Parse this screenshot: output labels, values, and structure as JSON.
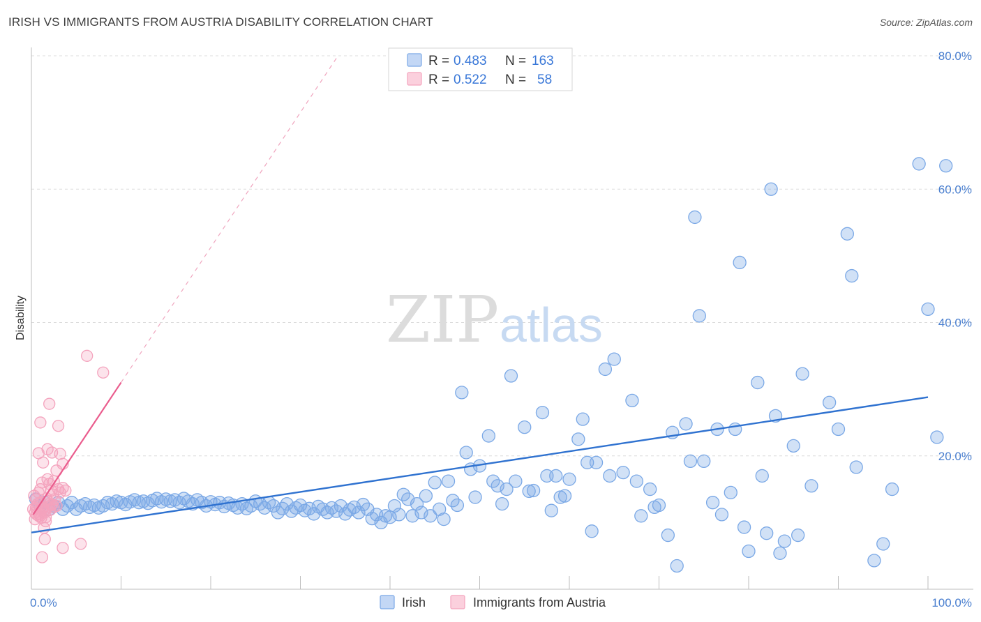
{
  "title": "IRISH VS IMMIGRANTS FROM AUSTRIA DISABILITY CORRELATION CHART",
  "source": "Source: ZipAtlas.com",
  "watermark": {
    "zip": "ZIP",
    "atlas": "atlas"
  },
  "chart_data": {
    "type": "scatter",
    "ylabel": "Disability",
    "xlim": [
      0,
      100
    ],
    "ylim": [
      0,
      80
    ],
    "x_tick_labels": [
      "0.0%",
      "100.0%"
    ],
    "y_ticks": [
      20,
      40,
      60,
      80
    ],
    "y_tick_labels": [
      "20.0%",
      "40.0%",
      "60.0%",
      "80.0%"
    ],
    "grid": true,
    "legend_placement": "top-center",
    "legend": {
      "rows": [
        {
          "r_label": "R =",
          "r_value": "0.483",
          "n_label": "N =",
          "n_value": "163"
        },
        {
          "r_label": "R =",
          "r_value": "0.522",
          "n_label": "N =",
          "n_value": "58"
        }
      ]
    },
    "series": [
      {
        "name": "Irish",
        "color": "#7aa8e6",
        "line_color": "#2f72d0",
        "trend": {
          "x": [
            0,
            100
          ],
          "y": [
            8.5,
            28.8
          ]
        },
        "points": [
          [
            0.5,
            13.5
          ],
          [
            1,
            12.5
          ],
          [
            1.5,
            13
          ],
          [
            2,
            12
          ],
          [
            2.5,
            12.5
          ],
          [
            3,
            13
          ],
          [
            3.5,
            12
          ],
          [
            4,
            12.5
          ],
          [
            4.5,
            13
          ],
          [
            5,
            12
          ],
          [
            5.5,
            12.5
          ],
          [
            6,
            12.8
          ],
          [
            6.5,
            12.3
          ],
          [
            7,
            12.6
          ],
          [
            7.5,
            12.2
          ],
          [
            8,
            12.5
          ],
          [
            8.5,
            13
          ],
          [
            9,
            12.8
          ],
          [
            9.5,
            13.2
          ],
          [
            10,
            13
          ],
          [
            10.5,
            12.7
          ],
          [
            11,
            13.1
          ],
          [
            11.5,
            13.4
          ],
          [
            12,
            13
          ],
          [
            12.5,
            13.2
          ],
          [
            13,
            12.9
          ],
          [
            13.5,
            13.3
          ],
          [
            14,
            13.6
          ],
          [
            14.5,
            13.1
          ],
          [
            15,
            13.5
          ],
          [
            15.5,
            13.2
          ],
          [
            16,
            13.4
          ],
          [
            16.5,
            13
          ],
          [
            17,
            13.6
          ],
          [
            17.5,
            13.2
          ],
          [
            18,
            12.8
          ],
          [
            18.5,
            13.4
          ],
          [
            19,
            13
          ],
          [
            19.5,
            12.5
          ],
          [
            20,
            13.1
          ],
          [
            20.5,
            12.7
          ],
          [
            21,
            13
          ],
          [
            21.5,
            12.4
          ],
          [
            22,
            12.9
          ],
          [
            22.5,
            12.6
          ],
          [
            23,
            12.2
          ],
          [
            23.5,
            12.8
          ],
          [
            24,
            12.1
          ],
          [
            24.5,
            12.5
          ],
          [
            25,
            13.2
          ],
          [
            25.5,
            12.8
          ],
          [
            26,
            12.2
          ],
          [
            26.5,
            13
          ],
          [
            27,
            12.5
          ],
          [
            27.5,
            11.5
          ],
          [
            28,
            12.1
          ],
          [
            28.5,
            12.8
          ],
          [
            29,
            11.7
          ],
          [
            29.5,
            12.2
          ],
          [
            30,
            12.6
          ],
          [
            30.5,
            11.8
          ],
          [
            31,
            12.1
          ],
          [
            31.5,
            11.3
          ],
          [
            32,
            12.4
          ],
          [
            32.5,
            12
          ],
          [
            33,
            11.5
          ],
          [
            33.5,
            12.2
          ],
          [
            34,
            11.7
          ],
          [
            34.5,
            12.5
          ],
          [
            35,
            11.3
          ],
          [
            35.5,
            11.9
          ],
          [
            36,
            12.3
          ],
          [
            36.5,
            11.5
          ],
          [
            37,
            12.7
          ],
          [
            37.5,
            12
          ],
          [
            38,
            10.6
          ],
          [
            38.5,
            11.2
          ],
          [
            39,
            10
          ],
          [
            39.5,
            11
          ],
          [
            40,
            10.8
          ],
          [
            40.5,
            12.5
          ],
          [
            41,
            11.2
          ],
          [
            41.5,
            14.2
          ],
          [
            42,
            13.5
          ],
          [
            42.5,
            11
          ],
          [
            43,
            12.8
          ],
          [
            43.5,
            11.5
          ],
          [
            44,
            14
          ],
          [
            44.5,
            11
          ],
          [
            45,
            16
          ],
          [
            45.5,
            12
          ],
          [
            46,
            10.5
          ],
          [
            46.5,
            16.2
          ],
          [
            47,
            13.3
          ],
          [
            47.5,
            12.6
          ],
          [
            48,
            29.5
          ],
          [
            48.5,
            20.5
          ],
          [
            49,
            18
          ],
          [
            49.5,
            13.8
          ],
          [
            50,
            18.5
          ],
          [
            51,
            23
          ],
          [
            51.5,
            16.2
          ],
          [
            52,
            15.5
          ],
          [
            52.5,
            12.8
          ],
          [
            53,
            15
          ],
          [
            53.5,
            32
          ],
          [
            54,
            16.2
          ],
          [
            55,
            24.3
          ],
          [
            55.5,
            14.7
          ],
          [
            56,
            14.8
          ],
          [
            57,
            26.5
          ],
          [
            57.5,
            17
          ],
          [
            58,
            11.8
          ],
          [
            58.5,
            17
          ],
          [
            59,
            13.8
          ],
          [
            59.5,
            14
          ],
          [
            60,
            16.5
          ],
          [
            61,
            22.5
          ],
          [
            61.5,
            25.5
          ],
          [
            62,
            19
          ],
          [
            62.5,
            8.7
          ],
          [
            63,
            19
          ],
          [
            64,
            33
          ],
          [
            64.5,
            17
          ],
          [
            65,
            34.5
          ],
          [
            66,
            17.5
          ],
          [
            67,
            28.3
          ],
          [
            67.5,
            16.2
          ],
          [
            68,
            11
          ],
          [
            69,
            15
          ],
          [
            69.5,
            12.3
          ],
          [
            70,
            12.6
          ],
          [
            71,
            8.1
          ],
          [
            71.5,
            23.5
          ],
          [
            72,
            3.5
          ],
          [
            73,
            24.8
          ],
          [
            73.5,
            19.2
          ],
          [
            74,
            55.8
          ],
          [
            74.5,
            41
          ],
          [
            75,
            19.2
          ],
          [
            76,
            13
          ],
          [
            76.5,
            24
          ],
          [
            77,
            11.2
          ],
          [
            78,
            14.5
          ],
          [
            78.5,
            24
          ],
          [
            79,
            49
          ],
          [
            79.5,
            9.3
          ],
          [
            80,
            5.7
          ],
          [
            81,
            31
          ],
          [
            81.5,
            17
          ],
          [
            82,
            8.4
          ],
          [
            82.5,
            60
          ],
          [
            83,
            26
          ],
          [
            83.5,
            5.4
          ],
          [
            84,
            7.2
          ],
          [
            85,
            21.5
          ],
          [
            85.5,
            8.1
          ],
          [
            86,
            32.3
          ],
          [
            87,
            15.5
          ],
          [
            89,
            28
          ],
          [
            90,
            24
          ],
          [
            91,
            53.3
          ],
          [
            91.5,
            47
          ],
          [
            92,
            18.3
          ],
          [
            94,
            4.3
          ],
          [
            95,
            6.8
          ],
          [
            96,
            15
          ],
          [
            99,
            63.8
          ],
          [
            100,
            42
          ],
          [
            101,
            22.8
          ],
          [
            102,
            63.5
          ]
        ]
      },
      {
        "name": "Immigrants from Austria",
        "color": "#f4a3bd",
        "line_color": "#ea5c8d",
        "trend": {
          "x": [
            0.2,
            10
          ],
          "y": [
            11.2,
            31
          ]
        },
        "trend_ext": {
          "x": [
            10,
            34.2
          ],
          "y": [
            31,
            80
          ]
        },
        "points": [
          [
            0.2,
            12
          ],
          [
            0.4,
            11.5
          ],
          [
            0.6,
            12.5
          ],
          [
            0.8,
            11
          ],
          [
            1,
            13
          ],
          [
            1.2,
            12.2
          ],
          [
            1.4,
            11.8
          ],
          [
            1.6,
            10.8
          ],
          [
            1.8,
            13.2
          ],
          [
            2,
            12.8
          ],
          [
            0.3,
            14
          ],
          [
            0.5,
            13.5
          ],
          [
            0.7,
            12.8
          ],
          [
            0.9,
            11.3
          ],
          [
            1.1,
            10.7
          ],
          [
            1.3,
            12.1
          ],
          [
            1.5,
            11.5
          ],
          [
            1.7,
            13.6
          ],
          [
            1.9,
            12.4
          ],
          [
            2.1,
            11.9
          ],
          [
            2.3,
            12.7
          ],
          [
            2.5,
            12.3
          ],
          [
            0.4,
            10.5
          ],
          [
            0.6,
            11.2
          ],
          [
            0.8,
            14.5
          ],
          [
            1,
            15
          ],
          [
            1.2,
            16
          ],
          [
            1.4,
            9.2
          ],
          [
            1.6,
            10.2
          ],
          [
            1.8,
            16.5
          ],
          [
            2,
            15.8
          ],
          [
            2.2,
            14.8
          ],
          [
            2.4,
            14.2
          ],
          [
            2.6,
            13.5
          ],
          [
            2.8,
            12.5
          ],
          [
            3,
            15
          ],
          [
            3.2,
            14.5
          ],
          [
            3.5,
            15.2
          ],
          [
            0.8,
            20.4
          ],
          [
            1,
            25
          ],
          [
            1.3,
            19
          ],
          [
            1.5,
            7.5
          ],
          [
            1.8,
            21
          ],
          [
            2,
            27.8
          ],
          [
            2.3,
            20.5
          ],
          [
            2.5,
            16.2
          ],
          [
            2.8,
            17.8
          ],
          [
            3,
            24.5
          ],
          [
            3.2,
            20.3
          ],
          [
            3.5,
            18.8
          ],
          [
            3.8,
            14.8
          ],
          [
            1.2,
            4.8
          ],
          [
            3.5,
            6.2
          ],
          [
            5.5,
            6.8
          ],
          [
            6.2,
            35
          ],
          [
            8,
            32.5
          ],
          [
            1,
            11
          ],
          [
            0.5,
            12.2
          ]
        ]
      }
    ]
  },
  "bottom_legend": [
    {
      "label": "Irish"
    },
    {
      "label": "Immigrants from Austria"
    }
  ]
}
